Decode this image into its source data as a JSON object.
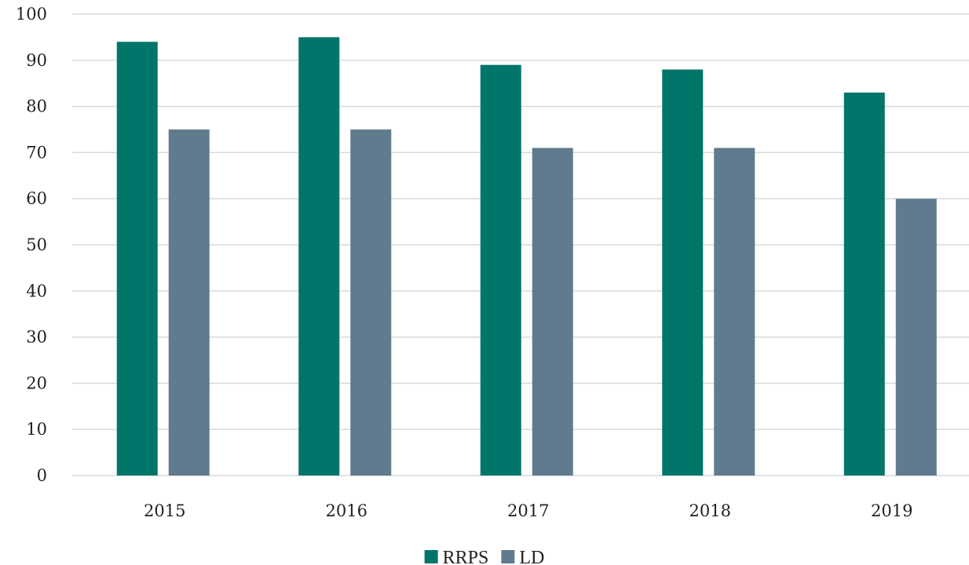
{
  "chart_data": {
    "type": "bar",
    "categories": [
      "2015",
      "2016",
      "2017",
      "2018",
      "2019"
    ],
    "series": [
      {
        "name": "RRPS",
        "values": [
          94,
          95,
          89,
          88,
          83
        ],
        "color": "#00766a"
      },
      {
        "name": "LD",
        "values": [
          75,
          75,
          71,
          71,
          60
        ],
        "color": "#5f7b8d"
      }
    ],
    "ylim": [
      0,
      100
    ],
    "yticks": [
      "0",
      "10",
      "20",
      "30",
      "40",
      "50",
      "60",
      "70",
      "80",
      "90",
      "100"
    ],
    "grid": true,
    "legend_position": "bottom-center"
  }
}
